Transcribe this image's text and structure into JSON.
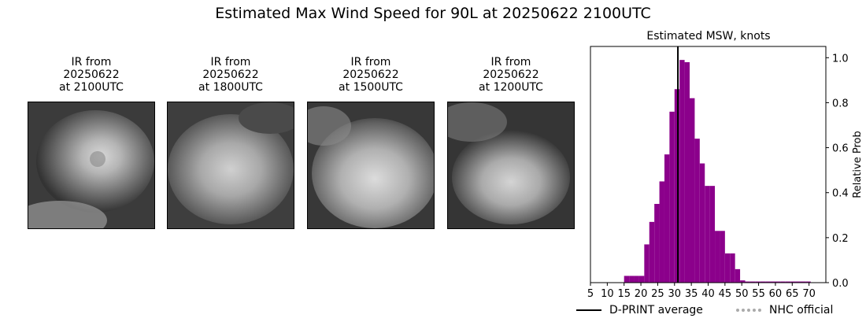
{
  "page": {
    "suptitle": "Estimated Max Wind Speed for 90L at 20250622 2100UTC"
  },
  "ir_panels": [
    {
      "line1": "IR from",
      "line2": "20250622",
      "line3": "at 2100UTC"
    },
    {
      "line1": "IR from",
      "line2": "20250622",
      "line3": "at 1800UTC"
    },
    {
      "line1": "IR from",
      "line2": "20250622",
      "line3": "at 1500UTC"
    },
    {
      "line1": "IR from",
      "line2": "20250622",
      "line3": "at 1200UTC"
    }
  ],
  "chart_data": {
    "type": "bar",
    "title": "Estimated MSW, knots",
    "xlabel": "",
    "ylabel": "Relative Prob",
    "xlim": [
      5,
      75
    ],
    "ylim": [
      0,
      1.05
    ],
    "xticks": [
      5,
      10,
      15,
      20,
      25,
      30,
      35,
      40,
      45,
      50,
      55,
      60,
      65,
      70
    ],
    "yticks": [
      0.0,
      0.2,
      0.4,
      0.6,
      0.8,
      1.0
    ],
    "ytick_labels": [
      "0.0",
      "0.2",
      "0.4",
      "0.6",
      "0.8",
      "1.0"
    ],
    "bar_width": 1.5,
    "bar_color": "#8b008b",
    "series": [
      {
        "x": [
          15,
          16.5,
          18,
          19.5,
          21,
          22.5,
          24,
          25.5,
          27,
          28.5,
          30,
          31.5,
          33,
          34.5,
          36,
          37.5,
          39,
          40.5,
          42,
          43.5,
          45,
          46.5,
          48,
          49.5,
          51,
          52.5,
          54,
          55.5,
          57,
          58.5,
          60,
          61.5,
          63,
          64.5,
          66,
          67.5,
          69
        ],
        "values": [
          0.03,
          0.03,
          0.03,
          0.03,
          0.17,
          0.27,
          0.35,
          0.45,
          0.57,
          0.76,
          0.86,
          0.99,
          0.98,
          0.82,
          0.64,
          0.53,
          0.43,
          0.43,
          0.23,
          0.23,
          0.13,
          0.13,
          0.06,
          0.01,
          0.005,
          0.005,
          0.005,
          0.005,
          0.005,
          0.005,
          0.005,
          0.005,
          0.005,
          0.005,
          0.005,
          0.005,
          0.005
        ]
      }
    ],
    "dprint_average": 31,
    "legend": [
      {
        "label": "D-PRINT average",
        "color": "#000000",
        "style": "solid"
      },
      {
        "label": "NHC official",
        "color": "#aaaaaa",
        "style": "dotted"
      }
    ],
    "legend_position": "bottom",
    "grid": false
  }
}
